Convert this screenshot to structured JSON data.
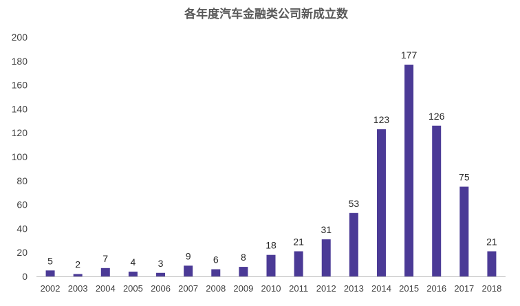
{
  "colors": {
    "bar": "#4b3a96",
    "axis": "#bfbfbf",
    "text": "#404040",
    "background": "#ffffff"
  },
  "chart_data": {
    "type": "bar",
    "title": "各年度汽车金融类公司新成立数",
    "xlabel": "",
    "ylabel": "",
    "ylim": [
      0,
      200
    ],
    "yticks": [
      0,
      20,
      40,
      60,
      80,
      100,
      120,
      140,
      160,
      180,
      200
    ],
    "grid": false,
    "legend": "none",
    "categories": [
      "2002",
      "2003",
      "2004",
      "2005",
      "2006",
      "2007",
      "2008",
      "2009",
      "2010",
      "2011",
      "2012",
      "2013",
      "2014",
      "2015",
      "2016",
      "2017",
      "2018"
    ],
    "values": [
      5,
      2,
      7,
      4,
      3,
      9,
      6,
      8,
      18,
      21,
      31,
      53,
      123,
      177,
      126,
      75,
      21
    ]
  }
}
